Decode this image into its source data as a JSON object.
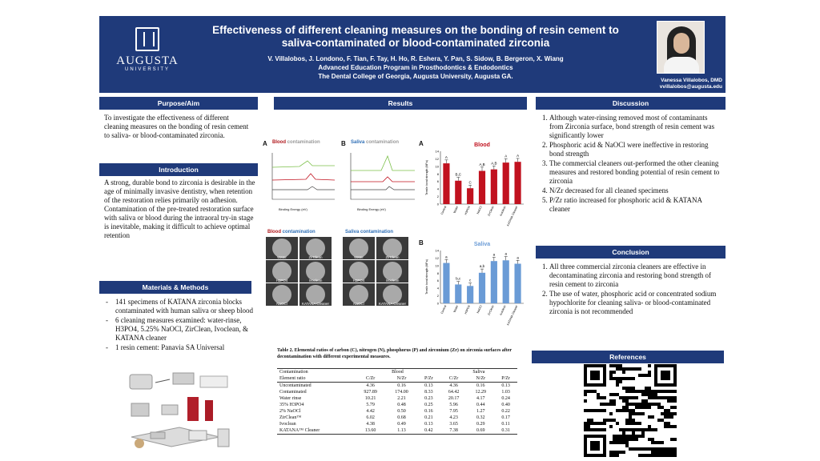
{
  "header": {
    "logo_name": "AUGUSTA",
    "logo_sub": "UNIVERSITY",
    "title_line1": "Effectiveness of different cleaning measures on the bonding of resin cement to",
    "title_line2": "saliva-contaminated or blood-contaminated zirconia",
    "authors": "V. Villalobos, J. Londono, F. Tian, F. Tay, H. Ho, R. Eshera, Y. Pan, S. Sidow, B. Bergeron, X. Wiang",
    "program": "Advanced Education Program in Prosthodontics & Endodontics",
    "institution": "The Dental College of Georgia, Augusta University, Augusta GA.",
    "presenter_name": "Vanessa Villalobos, DMD",
    "presenter_email": "vvillalobos@augusta.edu"
  },
  "purpose": {
    "heading": "Purpose/Aim",
    "text": "To investigate the effectiveness of different cleaning measures on the bonding of resin cement to saliva- or blood-contaminated zirconia."
  },
  "introduction": {
    "heading": "Introduction",
    "text": "A strong, durable bond to zirconia is desirable in the age of minimally invasive dentistry, when retention of the restoration relies primarily on adhesion. Contamination of the pre-treated restoration surface with saliva or blood during the intraoral try-in stage is inevitable, making it difficult to achieve optimal retention"
  },
  "methods": {
    "heading": "Materials & Methods",
    "items": [
      "141 specimens of KATANA zirconia blocks contaminated with human saliva or sheep blood",
      "6 cleaning measures examined: water-rinse, H3PO4, 5.25% NaOCl, ZirClean, Ivoclean, & KATANA cleaner",
      "1 resin cement: Panavia SA Universal"
    ]
  },
  "results": {
    "heading": "Results",
    "xps_a": {
      "letter": "A",
      "label1": "Blood",
      "label2": "contamination"
    },
    "xps_b": {
      "letter": "B",
      "label1": "Saliva",
      "label2": "contamination"
    },
    "xps_xlabel": "Binding Energy (eV)",
    "dish_blood": {
      "label1": "Blood",
      "label2": "contamination"
    },
    "dish_saliva": {
      "label1": "Saliva",
      "label2": "contamination"
    },
    "dish_labels": [
      "Water",
      "ZirClean",
      "H3PO4",
      "Ivoclean",
      "NaOCl",
      "KATANA Cleaner"
    ],
    "bar_a_title": "Blood",
    "bar_b_title": "Saliva",
    "bar_ylabel": "Tensile bond strength (MPa)",
    "table_caption": "Table 2. Elemental ratios of carbon (C), nitrogen (N), phosphorus (P) and zirconium (Zr) on zirconia surfaces after decontamination with different experimental measures."
  },
  "chart_data": [
    {
      "type": "bar",
      "title": "Blood",
      "categories": [
        "Control",
        "Water",
        "H3PO4",
        "NaOCl",
        "ZirClean",
        "Ivoclean",
        "KATANA Cleaner"
      ],
      "values": [
        10.8,
        6.2,
        4.2,
        8.8,
        9.2,
        11.0,
        11.2
      ],
      "errors": [
        0.9,
        0.9,
        0.8,
        1.0,
        0.9,
        1.0,
        0.9
      ],
      "letters": [
        "A",
        "B,C",
        "C",
        "A,B",
        "A,B",
        "A",
        "A"
      ],
      "ylim": [
        0,
        14
      ],
      "yticks": [
        0,
        2,
        4,
        6,
        8,
        10,
        12,
        14
      ],
      "color": "#c1121f"
    },
    {
      "type": "bar",
      "title": "Saliva",
      "categories": [
        "Control",
        "Water",
        "H3PO4",
        "NaOCl",
        "ZirClean",
        "Ivoclean",
        "KATANA Cleaner"
      ],
      "values": [
        10.7,
        5.0,
        4.6,
        8.1,
        11.2,
        11.4,
        10.5
      ],
      "errors": [
        0.9,
        0.8,
        0.8,
        1.0,
        1.0,
        1.0,
        0.9
      ],
      "letters": [
        "a",
        "b,c",
        "c",
        "a,b",
        "a",
        "a",
        "a"
      ],
      "ylim": [
        0,
        14
      ],
      "yticks": [
        0,
        2,
        4,
        6,
        8,
        10,
        12,
        14
      ],
      "color": "#6a9bd6"
    },
    {
      "type": "table",
      "columns": [
        "Contamination",
        "Blood",
        "Saliva"
      ],
      "element_ratio_headers": [
        "Element ratio",
        "C/Zr",
        "N/Zr",
        "P/Zr",
        "C/Zr",
        "N/Zr",
        "P/Zr"
      ],
      "rows": [
        [
          "Uncontaminated",
          "4.36",
          "0.16",
          "0.13",
          "4.36",
          "0.16",
          "0.13"
        ],
        [
          "Contaminated",
          "927.89",
          "174.00",
          "8.33",
          "64.42",
          "12.29",
          "1.03"
        ],
        [
          "Water rinse",
          "10.21",
          "2.21",
          "0.23",
          "20.17",
          "4.17",
          "0.24"
        ],
        [
          "35% H3PO4",
          "5.79",
          "0.48",
          "0.25",
          "5.96",
          "0.44",
          "0.40"
        ],
        [
          "2% NaOCl",
          "4.42",
          "0.50",
          "0.16",
          "7.95",
          "1.27",
          "0.22"
        ],
        [
          "ZirClean™",
          "6.02",
          "0.68",
          "0.21",
          "4.23",
          "0.32",
          "0.17"
        ],
        [
          "Ivoclean",
          "4.38",
          "0.49",
          "0.13",
          "3.65",
          "0.29",
          "0.11"
        ],
        [
          "KATANA™ Cleaner",
          "13.60",
          "1.13",
          "0.42",
          "7.38",
          "0.69",
          "0.31"
        ]
      ]
    }
  ],
  "discussion": {
    "heading": "Discussion",
    "items": [
      "Although water-rinsing removed most of contaminants from Zirconia surface, bond strength of resin cement was significantly lower",
      "Phosphoric acid & NaOCl were ineffective in restoring bond strength",
      "The commercial cleaners out-performed the other cleaning measures and restored bonding potential of resin cement to zirconia",
      "N/Zr decreased for all cleaned specimens",
      "P/Zr ratio increased for phosphoric acid & KATANA cleaner"
    ]
  },
  "conclusion": {
    "heading": "Conclusion",
    "items": [
      "All three commercial zirconia cleaners are effective in decontaminating zirconia and restoring bond strength of resin cement to zirconia",
      "The use of water, phosphoric acid or concentrated sodium hypochlorite for cleaning saliva- or blood-contaminated zirconia is not recommended"
    ]
  },
  "references": {
    "heading": "References"
  },
  "colors": {
    "header_bg": "#1f3a7a",
    "blood_red": "#c1121f",
    "saliva_blue": "#6a9bd6"
  }
}
